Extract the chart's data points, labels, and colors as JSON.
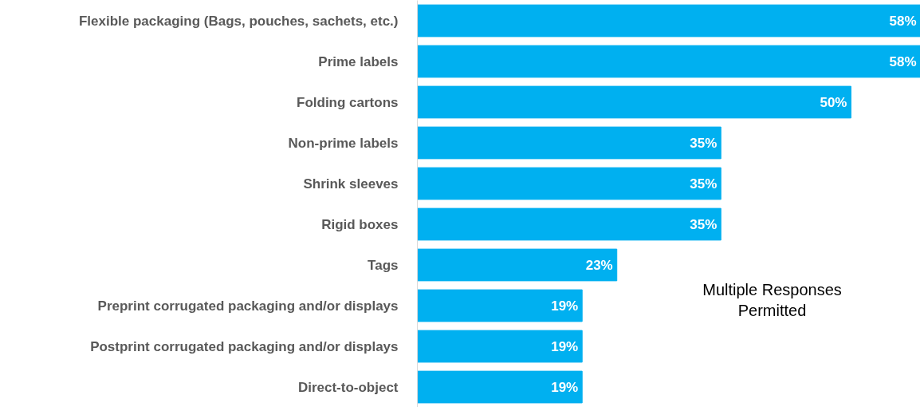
{
  "chart_data": {
    "type": "bar",
    "orientation": "horizontal",
    "categories": [
      "Flexible packaging (Bags, pouches, sachets, etc.)",
      "Prime labels",
      "Folding cartons",
      "Non-prime labels",
      "Shrink sleeves",
      "Rigid boxes",
      "Tags",
      "Preprint corrugated packaging and/or displays",
      "Postprint corrugated packaging and/or displays",
      "Direct-to-object"
    ],
    "values": [
      58,
      58,
      50,
      35,
      35,
      35,
      23,
      19,
      19,
      19
    ],
    "value_labels": [
      "58%",
      "58%",
      "50%",
      "35%",
      "35%",
      "35%",
      "23%",
      "19%",
      "19%",
      "19%"
    ],
    "color": "#00b0f0",
    "xlim": [
      0,
      58
    ],
    "tick_labels": "y",
    "annotations": [
      "Multiple Responses\nPermitted"
    ]
  }
}
